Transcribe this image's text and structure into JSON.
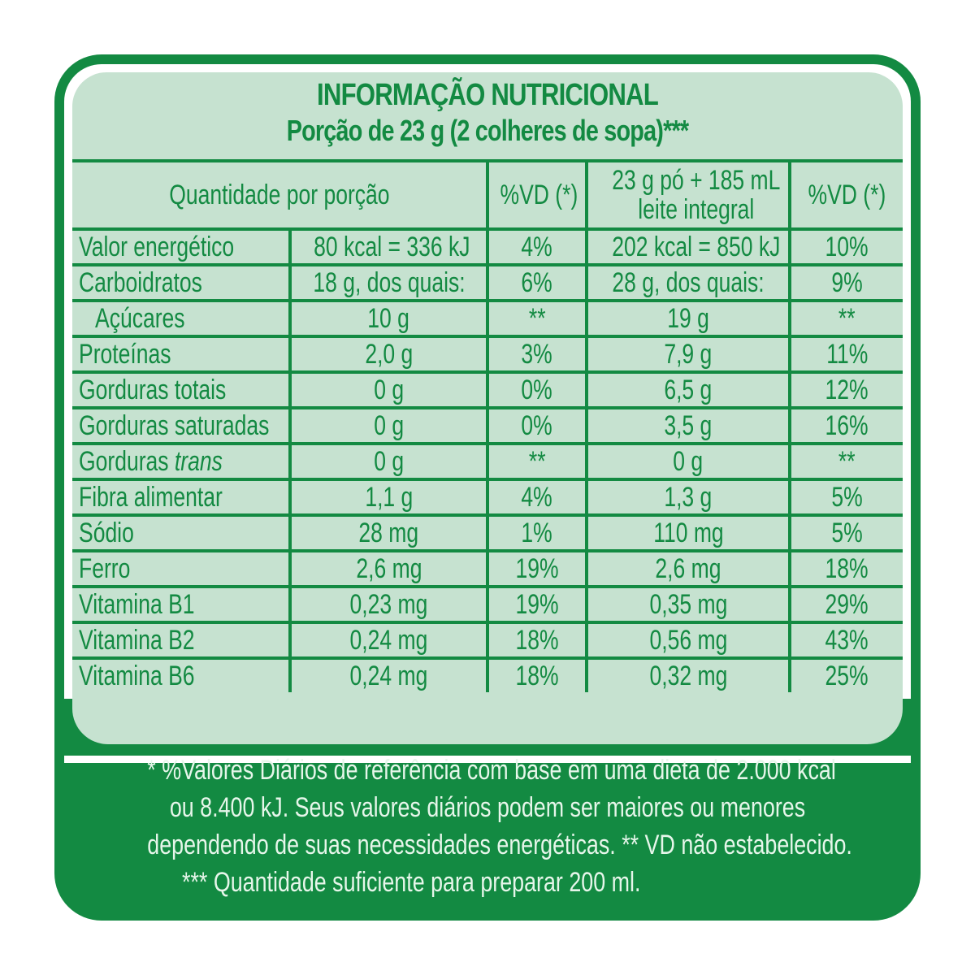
{
  "label": {
    "title": "INFORMAÇÃO NUTRICIONAL",
    "serving": "Porção de 23 g (2 colheres de sopa)***",
    "columns": {
      "quantity": "Quantidade por porção",
      "vd1": "%VD (*)",
      "prepared_line1": "23 g pó + 185 mL",
      "prepared_line2": "leite integral",
      "vd2": "%VD (*)"
    },
    "rows": [
      {
        "nutrient": "Valor energético",
        "nutrient_italic": "",
        "amount": "80 kcal = 336 kJ",
        "vd": "4%",
        "prepared": "202 kcal = 850 kJ",
        "vd_prepared": "10%"
      },
      {
        "nutrient": "Carboidratos",
        "nutrient_italic": "",
        "amount": "18 g, dos quais:",
        "vd": "6%",
        "prepared": "28 g, dos quais:",
        "vd_prepared": "9%"
      },
      {
        "nutrient": "Açúcares",
        "nutrient_italic": "",
        "amount": "10 g",
        "vd": "**",
        "prepared": "19 g",
        "vd_prepared": "**"
      },
      {
        "nutrient": "Proteínas",
        "nutrient_italic": "",
        "amount": "2,0 g",
        "vd": "3%",
        "prepared": "7,9 g",
        "vd_prepared": "11%"
      },
      {
        "nutrient": "Gorduras totais",
        "nutrient_italic": "",
        "amount": "0 g",
        "vd": "0%",
        "prepared": "6,5 g",
        "vd_prepared": "12%"
      },
      {
        "nutrient": "Gorduras saturadas",
        "nutrient_italic": "",
        "amount": "0 g",
        "vd": "0%",
        "prepared": "3,5 g",
        "vd_prepared": "16%"
      },
      {
        "nutrient": "Gorduras ",
        "nutrient_italic": "trans",
        "amount": "0 g",
        "vd": "**",
        "prepared": "0 g",
        "vd_prepared": "**"
      },
      {
        "nutrient": "Fibra alimentar",
        "nutrient_italic": "",
        "amount": "1,1 g",
        "vd": "4%",
        "prepared": "1,3 g",
        "vd_prepared": "5%"
      },
      {
        "nutrient": "Sódio",
        "nutrient_italic": "",
        "amount": "28 mg",
        "vd": "1%",
        "prepared": "110 mg",
        "vd_prepared": "5%"
      },
      {
        "nutrient": "Ferro",
        "nutrient_italic": "",
        "amount": "2,6 mg",
        "vd": "19%",
        "prepared": "2,6 mg",
        "vd_prepared": "18%"
      },
      {
        "nutrient": "Vitamina B1",
        "nutrient_italic": "",
        "amount": "0,23 mg",
        "vd": "19%",
        "prepared": "0,35 mg",
        "vd_prepared": "29%"
      },
      {
        "nutrient": "Vitamina B2",
        "nutrient_italic": "",
        "amount": "0,24 mg",
        "vd": "18%",
        "prepared": "0,56 mg",
        "vd_prepared": "43%"
      },
      {
        "nutrient": "Vitamina B6",
        "nutrient_italic": "",
        "amount": "0,24 mg",
        "vd": "18%",
        "prepared": "0,32 mg",
        "vd_prepared": "25%"
      }
    ],
    "footnotes": [
      "* %Valores Diários de referência com base em uma dieta de 2.000 kcal",
      "ou 8.400 kJ. Seus valores diários podem ser maiores ou menores",
      "dependendo de suas necessidades energéticas. ** VD não estabelecido.",
      "*** Quantidade suficiente para preparar 200 ml."
    ]
  },
  "colors": {
    "brand_green": "#138a42",
    "panel_light_green": "#c6e2d0",
    "footnote_text": "#e6f6ea"
  }
}
